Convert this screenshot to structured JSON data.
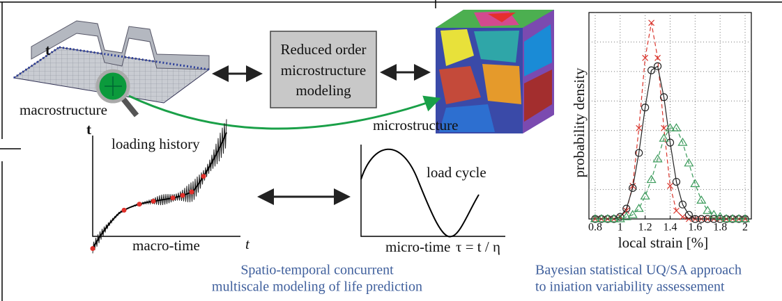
{
  "macro": {
    "thickness_label": "t",
    "label": "macrostructure"
  },
  "rom_box": {
    "lines": [
      "Reduced order",
      "microstructure",
      "modeling"
    ]
  },
  "micro": {
    "label": "microstructure"
  },
  "loading_plot": {
    "y_label": "t",
    "title": "loading history",
    "x_label": "macro-time",
    "x_symbol": "t"
  },
  "cycle_plot": {
    "title": "load cycle",
    "x_label": "micro-time",
    "x_formula": "τ = t / η"
  },
  "captions": {
    "left": [
      "Spatio-temporal concurrent",
      "multiscale modeling of life prediction"
    ],
    "right": [
      "Bayesian statistical UQ/SA approach",
      "to iniation variability assessement"
    ]
  },
  "chart_data": {
    "type": "line",
    "x_label": "local strain [%]",
    "y_label": "probability density",
    "x": [
      0.8,
      0.85,
      0.9,
      0.95,
      1.0,
      1.05,
      1.1,
      1.15,
      1.2,
      1.25,
      1.3,
      1.35,
      1.4,
      1.45,
      1.5,
      1.55,
      1.6,
      1.65,
      1.7,
      1.75,
      1.8,
      1.85,
      1.9,
      1.95,
      2.0
    ],
    "series": [
      {
        "color": "#d9342b",
        "marker": "x",
        "values": [
          0,
          0,
          0,
          0,
          0.01,
          0.04,
          0.16,
          0.44,
          0.78,
          0.95,
          0.78,
          0.44,
          0.16,
          0.04,
          0.01,
          0,
          0,
          0,
          0,
          0,
          0,
          0,
          0,
          0,
          0
        ]
      },
      {
        "color": "#222222",
        "marker": "o",
        "values": [
          0,
          0,
          0,
          0,
          0.01,
          0.05,
          0.15,
          0.32,
          0.54,
          0.72,
          0.74,
          0.59,
          0.37,
          0.18,
          0.07,
          0.02,
          0,
          0,
          0,
          0,
          0,
          0,
          0,
          0,
          0
        ]
      },
      {
        "color": "#3a9a5a",
        "marker": "triangle",
        "values": [
          0,
          0,
          0,
          0,
          0,
          0.01,
          0.02,
          0.05,
          0.11,
          0.19,
          0.29,
          0.39,
          0.44,
          0.44,
          0.37,
          0.27,
          0.17,
          0.09,
          0.04,
          0.02,
          0.01,
          0,
          0,
          0,
          0
        ]
      }
    ],
    "xlim": [
      0.75,
      2.05
    ],
    "ylim": [
      0,
      1
    ],
    "xticks": [
      0.8,
      1,
      1.2,
      1.4,
      1.6,
      1.8,
      2
    ],
    "grid": true
  }
}
